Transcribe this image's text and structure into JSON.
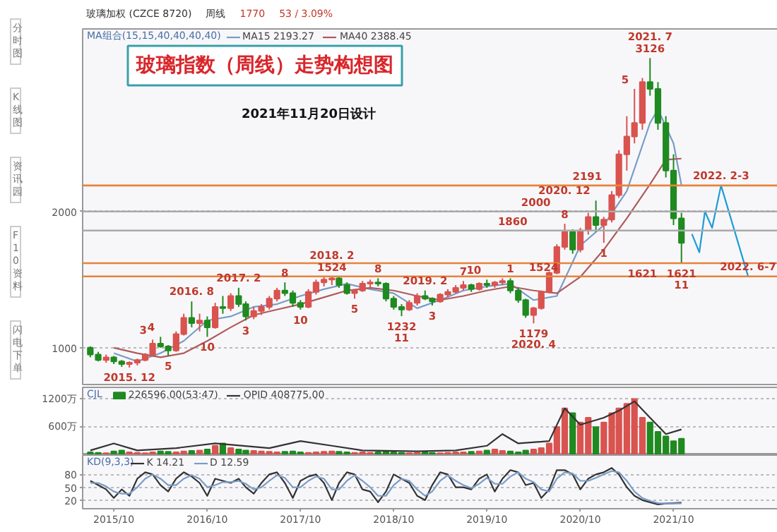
{
  "chart_data": [
    {
      "type": "candlestick",
      "title": "玻璃指数（周线）走势构想图",
      "subtitle": "2021年11月20日设计",
      "x": [
        "2015-07",
        "2015-08",
        "2015-09",
        "2015-10",
        "2015-11",
        "2015-12",
        "2016-01",
        "2016-02",
        "2016-03",
        "2016-04",
        "2016-05",
        "2016-06",
        "2016-07",
        "2016-08",
        "2016-09",
        "2016-10",
        "2016-11",
        "2016-12",
        "2017-01",
        "2017-02",
        "2017-03",
        "2017-04",
        "2017-05",
        "2017-06",
        "2017-07",
        "2017-08",
        "2017-09",
        "2017-10",
        "2017-11",
        "2017-12",
        "2018-01",
        "2018-02",
        "2018-03",
        "2018-04",
        "2018-05",
        "2018-06",
        "2018-07",
        "2018-08",
        "2018-09",
        "2018-10",
        "2018-11",
        "2018-12",
        "2019-01",
        "2019-02",
        "2019-03",
        "2019-04",
        "2019-05",
        "2019-06",
        "2019-07",
        "2019-08",
        "2019-09",
        "2019-10",
        "2019-11",
        "2019-12",
        "2020-01",
        "2020-02",
        "2020-03",
        "2020-04",
        "2020-05",
        "2020-06",
        "2020-07",
        "2020-08",
        "2020-09",
        "2020-10",
        "2020-11",
        "2020-12",
        "2021-01",
        "2021-02",
        "2021-03",
        "2021-04",
        "2021-05",
        "2021-06",
        "2021-07",
        "2021-08",
        "2021-09",
        "2021-10",
        "2021-11"
      ],
      "ohlc": [
        [
          1000,
          1010,
          930,
          950
        ],
        [
          950,
          970,
          900,
          910
        ],
        [
          910,
          950,
          890,
          930
        ],
        [
          930,
          940,
          880,
          900
        ],
        [
          900,
          910,
          860,
          880
        ],
        [
          880,
          900,
          855,
          890
        ],
        [
          890,
          920,
          870,
          910
        ],
        [
          910,
          960,
          900,
          950
        ],
        [
          950,
          1060,
          940,
          1030
        ],
        [
          1030,
          1080,
          1000,
          1010
        ],
        [
          1010,
          1020,
          940,
          980
        ],
        [
          980,
          1120,
          970,
          1100
        ],
        [
          1100,
          1250,
          1090,
          1220
        ],
        [
          1220,
          1340,
          1150,
          1180
        ],
        [
          1180,
          1250,
          1120,
          1200
        ],
        [
          1200,
          1230,
          1080,
          1150
        ],
        [
          1150,
          1330,
          1140,
          1300
        ],
        [
          1300,
          1380,
          1250,
          1290
        ],
        [
          1290,
          1400,
          1270,
          1380
        ],
        [
          1380,
          1440,
          1300,
          1320
        ],
        [
          1320,
          1340,
          1200,
          1230
        ],
        [
          1230,
          1300,
          1210,
          1270
        ],
        [
          1270,
          1320,
          1240,
          1300
        ],
        [
          1300,
          1380,
          1280,
          1360
        ],
        [
          1360,
          1440,
          1340,
          1420
        ],
        [
          1420,
          1480,
          1380,
          1400
        ],
        [
          1400,
          1420,
          1300,
          1330
        ],
        [
          1330,
          1350,
          1280,
          1300
        ],
        [
          1300,
          1430,
          1290,
          1410
        ],
        [
          1410,
          1500,
          1390,
          1480
        ],
        [
          1480,
          1520,
          1450,
          1500
        ],
        [
          1500,
          1524,
          1460,
          1510
        ],
        [
          1510,
          1520,
          1440,
          1460
        ],
        [
          1460,
          1480,
          1390,
          1400
        ],
        [
          1400,
          1430,
          1360,
          1420
        ],
        [
          1420,
          1490,
          1410,
          1470
        ],
        [
          1470,
          1500,
          1440,
          1480
        ],
        [
          1480,
          1510,
          1450,
          1470
        ],
        [
          1470,
          1480,
          1340,
          1360
        ],
        [
          1360,
          1380,
          1280,
          1300
        ],
        [
          1300,
          1320,
          1232,
          1280
        ],
        [
          1280,
          1350,
          1270,
          1330
        ],
        [
          1330,
          1400,
          1310,
          1380
        ],
        [
          1380,
          1420,
          1350,
          1360
        ],
        [
          1360,
          1370,
          1310,
          1340
        ],
        [
          1340,
          1400,
          1330,
          1390
        ],
        [
          1390,
          1430,
          1370,
          1410
        ],
        [
          1410,
          1460,
          1400,
          1440
        ],
        [
          1440,
          1490,
          1420,
          1460
        ],
        [
          1460,
          1470,
          1410,
          1430
        ],
        [
          1430,
          1480,
          1420,
          1470
        ],
        [
          1470,
          1500,
          1440,
          1460
        ],
        [
          1460,
          1490,
          1440,
          1480
        ],
        [
          1480,
          1510,
          1460,
          1490
        ],
        [
          1490,
          1510,
          1400,
          1420
        ],
        [
          1420,
          1440,
          1330,
          1350
        ],
        [
          1350,
          1360,
          1220,
          1240
        ],
        [
          1240,
          1300,
          1179,
          1290
        ],
        [
          1290,
          1420,
          1280,
          1410
        ],
        [
          1410,
          1560,
          1400,
          1550
        ],
        [
          1550,
          1760,
          1540,
          1740
        ],
        [
          1740,
          1910,
          1720,
          1850
        ],
        [
          1850,
          1870,
          1690,
          1720
        ],
        [
          1720,
          1880,
          1700,
          1860
        ],
        [
          1860,
          1990,
          1830,
          1960
        ],
        [
          1960,
          2080,
          1850,
          1900
        ],
        [
          1900,
          1960,
          1770,
          1940
        ],
        [
          1940,
          2150,
          1920,
          2120
        ],
        [
          2120,
          2450,
          2100,
          2420
        ],
        [
          2420,
          2700,
          2300,
          2550
        ],
        [
          2550,
          2900,
          2500,
          2650
        ],
        [
          2650,
          2980,
          2600,
          2950
        ],
        [
          2950,
          3126,
          2850,
          2900
        ],
        [
          2900,
          2950,
          2600,
          2650
        ],
        [
          2650,
          2700,
          2250,
          2300
        ],
        [
          2300,
          2420,
          1900,
          1950
        ],
        [
          1950,
          1990,
          1621,
          1770
        ]
      ],
      "colors": [
        "#1f8a1f",
        "#1f8a1f",
        "#d9534f",
        "#1f8a1f",
        "#1f8a1f",
        "#d9534f",
        "#d9534f",
        "#d9534f",
        "#d9534f",
        "#1f8a1f",
        "#1f8a1f",
        "#d9534f",
        "#d9534f",
        "#1f8a1f",
        "#d9534f",
        "#1f8a1f",
        "#d9534f",
        "#1f8a1f",
        "#d9534f",
        "#1f8a1f",
        "#1f8a1f",
        "#d9534f",
        "#d9534f",
        "#d9534f",
        "#d9534f",
        "#1f8a1f",
        "#1f8a1f",
        "#1f8a1f",
        "#d9534f",
        "#d9534f",
        "#d9534f",
        "#d9534f",
        "#1f8a1f",
        "#1f8a1f",
        "#d9534f",
        "#d9534f",
        "#d9534f",
        "#1f8a1f",
        "#1f8a1f",
        "#1f8a1f",
        "#1f8a1f",
        "#d9534f",
        "#d9534f",
        "#1f8a1f",
        "#1f8a1f",
        "#d9534f",
        "#d9534f",
        "#d9534f",
        "#d9534f",
        "#1f8a1f",
        "#d9534f",
        "#1f8a1f",
        "#d9534f",
        "#d9534f",
        "#1f8a1f",
        "#1f8a1f",
        "#1f8a1f",
        "#d9534f",
        "#d9534f",
        "#d9534f",
        "#d9534f",
        "#d9534f",
        "#1f8a1f",
        "#d9534f",
        "#d9534f",
        "#1f8a1f",
        "#d9534f",
        "#d9534f",
        "#d9534f",
        "#d9534f",
        "#d9534f",
        "#d9534f",
        "#1f8a1f",
        "#1f8a1f",
        "#1f8a1f",
        "#1f8a1f",
        "#1f8a1f"
      ],
      "series": [
        {
          "type": "line",
          "name": "MA15 2193.27",
          "color": "#7a9cc6",
          "x": [
            "2015-10",
            "2016-01",
            "2016-04",
            "2016-07",
            "2016-10",
            "2017-01",
            "2017-04",
            "2017-07",
            "2017-10",
            "2018-01",
            "2018-04",
            "2018-07",
            "2018-10",
            "2019-01",
            "2019-04",
            "2019-07",
            "2019-10",
            "2020-01",
            "2020-04",
            "2020-07",
            "2020-10",
            "2021-01",
            "2021-04",
            "2021-07",
            "2021-08",
            "2021-10",
            "2021-11"
          ],
          "values": [
            960,
            900,
            960,
            1050,
            1200,
            1230,
            1300,
            1320,
            1380,
            1430,
            1470,
            1430,
            1400,
            1290,
            1350,
            1420,
            1450,
            1470,
            1350,
            1380,
            1750,
            1900,
            2150,
            2650,
            2750,
            2500,
            2193.27
          ]
        },
        {
          "type": "line",
          "name": "MA40 2388.45",
          "color": "#b05a5a",
          "x": [
            "2015-10",
            "2016-01",
            "2016-04",
            "2016-07",
            "2016-10",
            "2017-01",
            "2017-04",
            "2017-07",
            "2017-10",
            "2018-01",
            "2018-04",
            "2018-07",
            "2018-10",
            "2019-01",
            "2019-04",
            "2019-07",
            "2019-10",
            "2020-01",
            "2020-04",
            "2020-07",
            "2020-10",
            "2021-01",
            "2021-04",
            "2021-07",
            "2021-09",
            "2021-11"
          ],
          "values": [
            1000,
            960,
            930,
            960,
            1050,
            1150,
            1240,
            1280,
            1320,
            1370,
            1420,
            1440,
            1420,
            1380,
            1350,
            1380,
            1420,
            1450,
            1420,
            1400,
            1520,
            1720,
            1950,
            2200,
            2380,
            2388.45
          ]
        },
        {
          "type": "line",
          "color": "#1e9bd7",
          "x": [
            "2021-12-12",
            "2022-01-10",
            "2022-02-01",
            "2022-03-01",
            "2022-04-05",
            "2022-07-20"
          ],
          "values": [
            1835,
            1700,
            2000,
            1880,
            2191,
            1524
          ]
        }
      ],
      "xlim": [
        "2015-06-01",
        "2023-02-15"
      ],
      "ylim": [
        730,
        3340
      ],
      "yticks": [
        1000,
        2000
      ],
      "grid": "y",
      "tick_labels": "y",
      "legend": "top left",
      "legend_title": "MA组合(15,15,40,40,40,40)",
      "ref_lines": [
        {
          "axis": "y",
          "value": 1524,
          "color": "#e8833a",
          "line_style": "solid"
        },
        {
          "axis": "y",
          "value": 1621,
          "color": "#e8833a",
          "line_style": "solid"
        },
        {
          "axis": "y",
          "value": 2191,
          "color": "#e8833a",
          "line_style": "solid"
        },
        {
          "axis": "y",
          "value": 2000,
          "color": "#aaaaaa",
          "line_style": "solid"
        },
        {
          "axis": "y",
          "value": 1860,
          "color": "#aaaaaa",
          "line_style": "solid"
        }
      ],
      "annotations": [
        "玻璃加权 (CZCE 8720)",
        "周线",
        "1770",
        "53 / 3.09%",
        "分时图",
        "K线图",
        "资讯园",
        "F10资料",
        "闪电下单",
        {
          "text": "2015. 12",
          "x": "2015-12",
          "y": 855
        },
        {
          "text": "3",
          "x": "2016-03",
          "y": 1060
        },
        {
          "text": "4",
          "x": "2016-04",
          "y": 1080
        },
        {
          "text": "5",
          "x": "2016-05",
          "y": 940
        },
        {
          "text": "2016. 8",
          "x": "2016-08",
          "y": 1340
        },
        {
          "text": "10",
          "x": "2016-10",
          "y": 1080
        },
        {
          "text": "2017. 2",
          "x": "2017-02",
          "y": 1440
        },
        {
          "text": "3",
          "x": "2017-03",
          "y": 1200
        },
        {
          "text": "8",
          "x": "2017-08",
          "y": 1480
        },
        {
          "text": "10",
          "x": "2017-10",
          "y": 1280
        },
        {
          "text": "1524",
          "x": "2018-02",
          "y": 1524
        },
        {
          "text": "2018. 2",
          "x": "2018-02",
          "y": 1524
        },
        {
          "text": "5",
          "x": "2018-05",
          "y": 1360
        },
        {
          "text": "8",
          "x": "2018-08",
          "y": 1510
        },
        {
          "text": "1232",
          "x": "2018-11",
          "y": 1232
        },
        {
          "text": "11",
          "x": "2018-11",
          "y": 1232
        },
        {
          "text": "2019. 2",
          "x": "2019-02",
          "y": 1420
        },
        {
          "text": "3",
          "x": "2019-03",
          "y": 1310
        },
        {
          "text": "7",
          "x": "2019-07",
          "y": 1490
        },
        {
          "text": "10",
          "x": "2019-10",
          "y": 1500
        },
        {
          "text": "1",
          "x": "2020-01",
          "y": 1510
        },
        {
          "text": "1524",
          "x": "2020-05-10",
          "y": 1524
        },
        {
          "text": "1179",
          "x": "2020-04",
          "y": 1179
        },
        {
          "text": "2020. 4",
          "x": "2020-04",
          "y": 1179
        },
        {
          "text": "8",
          "x": "2020-08",
          "y": 1910
        },
        {
          "text": "1860",
          "x": "2020-01-10",
          "y": 1860
        },
        {
          "text": "2000",
          "x": "2020-04-10",
          "y": 2000
        },
        {
          "text": "2020. 12",
          "x": "2020-12",
          "y": 2080
        },
        {
          "text": "2191",
          "x": "2020-10-28",
          "y": 2191
        },
        {
          "text": "1",
          "x": "2021-01",
          "y": 1770
        },
        {
          "text": "1621",
          "x": "2021-06-01",
          "y": 1621
        },
        {
          "text": "5",
          "x": "2021-05",
          "y": 2900
        },
        {
          "text": "3126",
          "x": "2021-07",
          "y": 3126
        },
        {
          "text": "2021. 7",
          "x": "2021-07",
          "y": 3126
        },
        {
          "text": "1621",
          "x": "2021-11",
          "y": 1621
        },
        {
          "text": "11",
          "x": "2021-11",
          "y": 1621
        },
        {
          "text": "2022. 2-3",
          "x": "2022-04-05",
          "y": 2191
        },
        {
          "text": "2022. 6-7",
          "x": "2022-07-20",
          "y": 1524
        }
      ]
    },
    {
      "type": "bar",
      "legend": "top left",
      "legend_title": "CJL",
      "x": [
        "2015-07",
        "2015-08",
        "2015-09",
        "2015-10",
        "2015-11",
        "2015-12",
        "2016-01",
        "2016-02",
        "2016-03",
        "2016-04",
        "2016-05",
        "2016-06",
        "2016-07",
        "2016-08",
        "2016-09",
        "2016-10",
        "2016-11",
        "2016-12",
        "2017-01",
        "2017-02",
        "2017-03",
        "2017-04",
        "2017-05",
        "2017-06",
        "2017-07",
        "2017-08",
        "2017-09",
        "2017-10",
        "2017-11",
        "2017-12",
        "2018-01",
        "2018-02",
        "2018-03",
        "2018-04",
        "2018-05",
        "2018-06",
        "2018-07",
        "2018-08",
        "2018-09",
        "2018-10",
        "2018-11",
        "2018-12",
        "2019-01",
        "2019-02",
        "2019-03",
        "2019-04",
        "2019-05",
        "2019-06",
        "2019-07",
        "2019-08",
        "2019-09",
        "2019-10",
        "2019-11",
        "2019-12",
        "2020-01",
        "2020-02",
        "2020-03",
        "2020-04",
        "2020-05",
        "2020-06",
        "2020-07",
        "2020-08",
        "2020-09",
        "2020-10",
        "2020-11",
        "2020-12",
        "2021-01",
        "2021-02",
        "2021-03",
        "2021-04",
        "2021-05",
        "2021-06",
        "2021-07",
        "2021-08",
        "2021-09",
        "2021-10",
        "2021-11"
      ],
      "series": [
        {
          "type": "bar",
          "name": "226596.00(53:47)",
          "values": [
            60,
            50,
            40,
            80,
            100,
            60,
            50,
            40,
            60,
            80,
            70,
            60,
            80,
            90,
            100,
            120,
            200,
            250,
            150,
            120,
            100,
            90,
            80,
            70,
            60,
            70,
            80,
            60,
            50,
            60,
            70,
            80,
            70,
            60,
            50,
            60,
            50,
            60,
            70,
            60,
            50,
            40,
            50,
            60,
            50,
            40,
            50,
            60,
            60,
            70,
            80,
            100,
            120,
            90,
            80,
            60,
            100,
            120,
            150,
            250,
            600,
            1000,
            900,
            700,
            800,
            600,
            700,
            900,
            1000,
            1100,
            1200,
            800,
            700,
            500,
            400,
            300,
            350
          ],
          "colors": [
            "#1f8a1f",
            "#1f8a1f",
            "#d9534f",
            "#1f8a1f",
            "#1f8a1f",
            "#d9534f",
            "#d9534f",
            "#d9534f",
            "#d9534f",
            "#1f8a1f",
            "#1f8a1f",
            "#d9534f",
            "#d9534f",
            "#1f8a1f",
            "#d9534f",
            "#1f8a1f",
            "#d9534f",
            "#1f8a1f",
            "#d9534f",
            "#1f8a1f",
            "#1f8a1f",
            "#d9534f",
            "#d9534f",
            "#d9534f",
            "#d9534f",
            "#1f8a1f",
            "#1f8a1f",
            "#1f8a1f",
            "#d9534f",
            "#d9534f",
            "#d9534f",
            "#d9534f",
            "#1f8a1f",
            "#1f8a1f",
            "#d9534f",
            "#d9534f",
            "#d9534f",
            "#1f8a1f",
            "#1f8a1f",
            "#1f8a1f",
            "#1f8a1f",
            "#d9534f",
            "#d9534f",
            "#1f8a1f",
            "#1f8a1f",
            "#d9534f",
            "#d9534f",
            "#d9534f",
            "#d9534f",
            "#1f8a1f",
            "#d9534f",
            "#1f8a1f",
            "#d9534f",
            "#d9534f",
            "#1f8a1f",
            "#1f8a1f",
            "#1f8a1f",
            "#d9534f",
            "#d9534f",
            "#d9534f",
            "#d9534f",
            "#d9534f",
            "#1f8a1f",
            "#d9534f",
            "#d9534f",
            "#1f8a1f",
            "#d9534f",
            "#d9534f",
            "#d9534f",
            "#d9534f",
            "#d9534f",
            "#d9534f",
            "#1f8a1f",
            "#1f8a1f",
            "#1f8a1f",
            "#1f8a1f",
            "#1f8a1f"
          ]
        },
        {
          "type": "line",
          "name": "OPID 408775.00",
          "color": "#333333",
          "x": [
            "2015-07",
            "2015-10",
            "2016-01",
            "2016-06",
            "2016-11",
            "2017-06",
            "2017-10",
            "2018-02",
            "2018-06",
            "2019-01",
            "2019-06",
            "2019-10",
            "2019-12",
            "2020-02",
            "2020-06",
            "2020-08",
            "2020-10",
            "2021-01",
            "2021-03",
            "2021-05",
            "2021-07",
            "2021-09",
            "2021-11"
          ],
          "values": [
            100,
            250,
            100,
            150,
            250,
            150,
            300,
            200,
            100,
            80,
            100,
            200,
            450,
            250,
            300,
            1000,
            650,
            800,
            950,
            1150,
            800,
            450,
            550
          ]
        }
      ],
      "xlim": [
        "2015-06-01",
        "2023-02-15"
      ],
      "ylim": [
        0,
        1450
      ],
      "yticks": [
        {
          "value": 600,
          "label": "600万"
        },
        {
          "value": 1200,
          "label": "1200万"
        }
      ],
      "grid": "y",
      "tick_labels": "y"
    },
    {
      "type": "line",
      "legend": "top left",
      "legend_title": "KD(9,3,3)",
      "x": [
        "2015-07",
        "2015-08",
        "2015-09",
        "2015-10",
        "2015-11",
        "2015-12",
        "2016-01",
        "2016-02",
        "2016-03",
        "2016-04",
        "2016-05",
        "2016-06",
        "2016-07",
        "2016-08",
        "2016-09",
        "2016-10",
        "2016-11",
        "2016-12",
        "2017-01",
        "2017-02",
        "2017-03",
        "2017-04",
        "2017-05",
        "2017-06",
        "2017-07",
        "2017-08",
        "2017-09",
        "2017-10",
        "2017-11",
        "2017-12",
        "2018-01",
        "2018-02",
        "2018-03",
        "2018-04",
        "2018-05",
        "2018-06",
        "2018-07",
        "2018-08",
        "2018-09",
        "2018-10",
        "2018-11",
        "2018-12",
        "2019-01",
        "2019-02",
        "2019-03",
        "2019-04",
        "2019-05",
        "2019-06",
        "2019-07",
        "2019-08",
        "2019-09",
        "2019-10",
        "2019-11",
        "2019-12",
        "2020-01",
        "2020-02",
        "2020-03",
        "2020-04",
        "2020-05",
        "2020-06",
        "2020-07",
        "2020-08",
        "2020-09",
        "2020-10",
        "2020-11",
        "2020-12",
        "2021-01",
        "2021-02",
        "2021-03",
        "2021-04",
        "2021-05",
        "2021-06",
        "2021-07",
        "2021-08",
        "2021-09",
        "2021-10",
        "2021-11"
      ],
      "series": [
        {
          "name": "K 14.21",
          "color": "#333333",
          "values": [
            65,
            55,
            45,
            25,
            45,
            30,
            70,
            85,
            80,
            55,
            40,
            70,
            85,
            75,
            60,
            30,
            70,
            65,
            60,
            70,
            50,
            35,
            60,
            80,
            85,
            60,
            25,
            65,
            75,
            80,
            60,
            20,
            60,
            85,
            80,
            45,
            40,
            15,
            40,
            80,
            70,
            60,
            30,
            20,
            55,
            85,
            80,
            50,
            50,
            45,
            70,
            80,
            40,
            70,
            90,
            85,
            55,
            60,
            25,
            45,
            90,
            90,
            80,
            45,
            70,
            80,
            85,
            95,
            80,
            50,
            30,
            20,
            15,
            10,
            12,
            13,
            14.21
          ]
        },
        {
          "name": "D 12.59",
          "color": "#7a9cc6",
          "values": [
            60,
            60,
            52,
            40,
            35,
            35,
            50,
            70,
            80,
            70,
            55,
            55,
            70,
            78,
            70,
            50,
            55,
            62,
            62,
            65,
            58,
            45,
            50,
            65,
            78,
            72,
            50,
            50,
            65,
            75,
            70,
            45,
            45,
            65,
            78,
            65,
            50,
            30,
            30,
            55,
            70,
            65,
            45,
            30,
            40,
            65,
            78,
            65,
            55,
            48,
            58,
            72,
            58,
            58,
            75,
            85,
            70,
            62,
            45,
            40,
            70,
            85,
            82,
            65,
            65,
            72,
            80,
            88,
            85,
            65,
            40,
            25,
            18,
            13,
            12,
            12,
            12.59
          ]
        }
      ],
      "xlim": [
        "2015-06-01",
        "2023-02-15"
      ],
      "ylim": [
        0,
        125
      ],
      "yticks": [
        20,
        50,
        80
      ],
      "grid": "y",
      "xticks": [
        {
          "value": "2015-10-01",
          "label": "2015/10"
        },
        {
          "value": "2016-10-01",
          "label": "2016/10"
        },
        {
          "value": "2017-10-01",
          "label": "2017/10"
        },
        {
          "value": "2018-10-01",
          "label": "2018/10"
        },
        {
          "value": "2019-10-01",
          "label": "2019/10"
        },
        {
          "value": "2020-10-01",
          "label": "2020/10"
        },
        {
          "value": "2021-10-01",
          "label": "2021/10"
        }
      ]
    }
  ]
}
